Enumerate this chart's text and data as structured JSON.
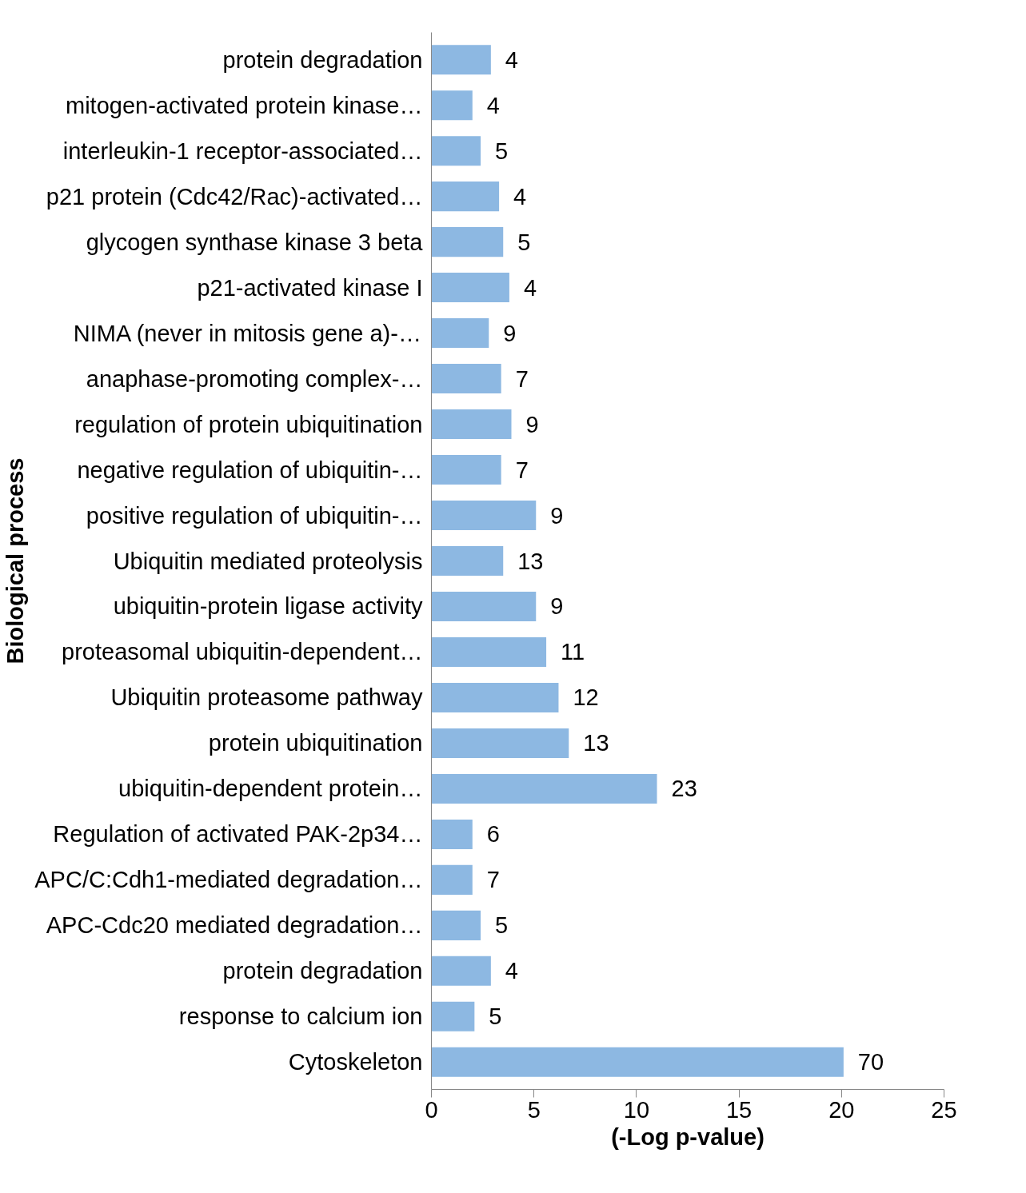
{
  "chart_data": {
    "type": "bar",
    "orientation": "horizontal",
    "ylabel": "Biological process",
    "xlabel": "(-Log p-value)",
    "categories": [
      "protein degradation",
      "mitogen-activated protein kinase…",
      "interleukin-1 receptor-associated…",
      "p21 protein (Cdc42/Rac)-activated…",
      "glycogen synthase kinase 3 beta",
      "p21-activated kinase I",
      "NIMA (never in mitosis gene a)-…",
      "anaphase-promoting complex-…",
      "regulation of protein ubiquitination",
      "negative regulation of ubiquitin-…",
      "positive regulation of ubiquitin-…",
      "Ubiquitin mediated proteolysis",
      "ubiquitin-protein ligase activity",
      "proteasomal ubiquitin-dependent…",
      "Ubiquitin proteasome pathway",
      "protein ubiquitination",
      "ubiquitin-dependent protein…",
      "Regulation of activated PAK-2p34…",
      "APC/C:Cdh1-mediated degradation…",
      "APC-Cdc20 mediated degradation…",
      "protein degradation",
      "response to calcium ion",
      "Cytoskeleton"
    ],
    "values": [
      2.9,
      2.0,
      2.4,
      3.3,
      3.5,
      3.8,
      2.8,
      3.4,
      3.9,
      3.4,
      5.1,
      3.5,
      5.1,
      5.6,
      6.2,
      6.7,
      11.0,
      2.0,
      2.0,
      2.4,
      2.9,
      2.1,
      20.1
    ],
    "annotations": [
      {
        "text": "4",
        "x": 2.9,
        "y": "protein degradation"
      },
      {
        "text": "4",
        "x": 2.0,
        "y": "mitogen-activated protein kinase…"
      },
      {
        "text": "5",
        "x": 2.4,
        "y": "interleukin-1 receptor-associated…"
      },
      {
        "text": "4",
        "x": 3.3,
        "y": "p21 protein (Cdc42/Rac)-activated…"
      },
      {
        "text": "5",
        "x": 3.5,
        "y": "glycogen synthase kinase 3 beta"
      },
      {
        "text": "4",
        "x": 3.8,
        "y": "p21-activated kinase I"
      },
      {
        "text": "9",
        "x": 2.8,
        "y": "NIMA (never in mitosis gene a)-…"
      },
      {
        "text": "7",
        "x": 3.4,
        "y": "anaphase-promoting complex-…"
      },
      {
        "text": "9",
        "x": 3.9,
        "y": "regulation of protein ubiquitination"
      },
      {
        "text": "7",
        "x": 3.4,
        "y": "negative regulation of ubiquitin-…"
      },
      {
        "text": "9",
        "x": 5.1,
        "y": "positive regulation of ubiquitin-…"
      },
      {
        "text": "13",
        "x": 3.5,
        "y": "Ubiquitin mediated proteolysis"
      },
      {
        "text": "9",
        "x": 5.1,
        "y": "ubiquitin-protein ligase activity"
      },
      {
        "text": "11",
        "x": 5.6,
        "y": "proteasomal ubiquitin-dependent…"
      },
      {
        "text": "12",
        "x": 6.2,
        "y": "Ubiquitin proteasome pathway"
      },
      {
        "text": "13",
        "x": 6.7,
        "y": "protein ubiquitination"
      },
      {
        "text": "23",
        "x": 11.0,
        "y": "ubiquitin-dependent protein…"
      },
      {
        "text": "6",
        "x": 2.0,
        "y": "Regulation of activated PAK-2p34…"
      },
      {
        "text": "7",
        "x": 2.0,
        "y": "APC/C:Cdh1-mediated degradation…"
      },
      {
        "text": "5",
        "x": 2.4,
        "y": "APC-Cdc20 mediated degradation…"
      },
      "4",
      {
        "text": "5",
        "x": 2.1,
        "y": "response to calcium ion"
      },
      {
        "text": "70",
        "x": 20.1,
        "y": "Cytoskeleton"
      }
    ],
    "color": "#8db8e2",
    "xlim": [
      0,
      25
    ],
    "xticks": [
      0,
      5,
      10,
      15,
      20,
      25
    ]
  }
}
